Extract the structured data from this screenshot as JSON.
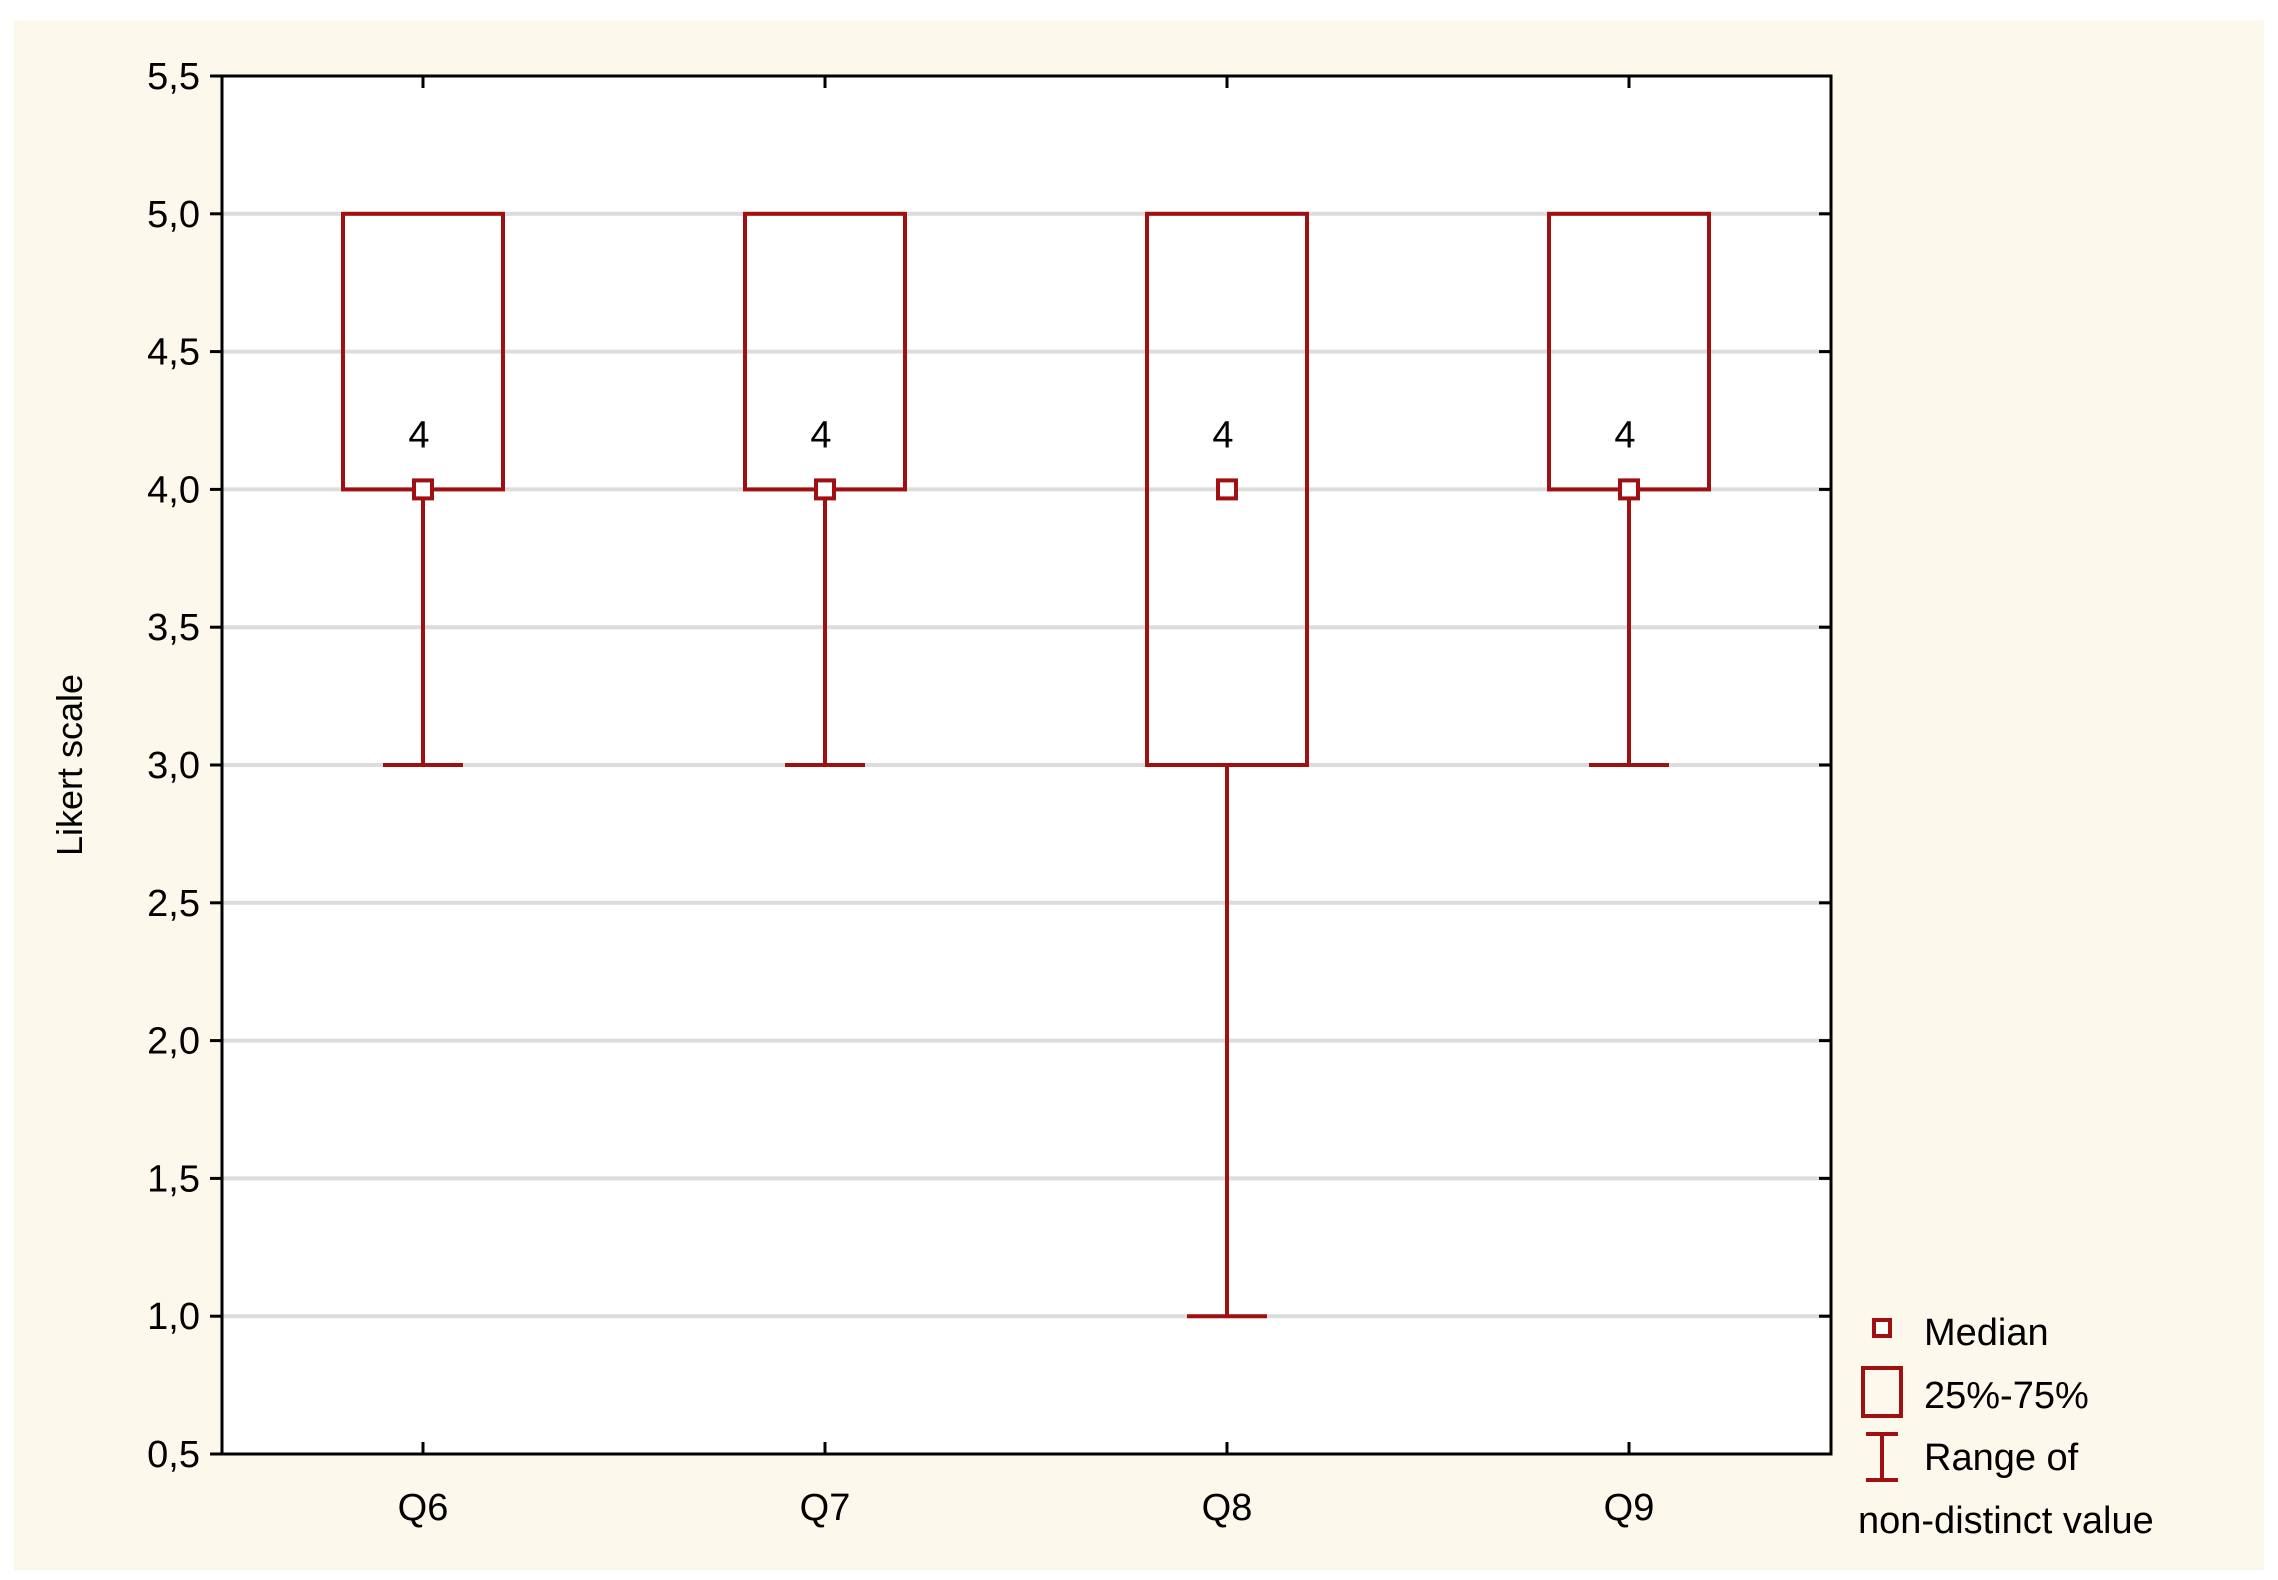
{
  "chart_data": {
    "type": "box",
    "categories": [
      "Q6",
      "Q7",
      "Q8",
      "Q9"
    ],
    "boxes": [
      {
        "category": "Q6",
        "median": 4,
        "q1": 4,
        "q3": 5,
        "min": 3,
        "max": 5,
        "label": "4"
      },
      {
        "category": "Q7",
        "median": 4,
        "q1": 4,
        "q3": 5,
        "min": 3,
        "max": 5,
        "label": "4"
      },
      {
        "category": "Q8",
        "median": 4,
        "q1": 3,
        "q3": 5,
        "min": 1,
        "max": 5,
        "label": "4"
      },
      {
        "category": "Q9",
        "median": 4,
        "q1": 4,
        "q3": 5,
        "min": 3,
        "max": 5,
        "label": "4"
      }
    ],
    "ylabel": "Likert scale",
    "xlabel": "",
    "ylim": [
      0.5,
      5.5
    ],
    "yticks": [
      "0,5",
      "1,0",
      "1,5",
      "2,0",
      "2,5",
      "3,0",
      "3,5",
      "4,0",
      "4,5",
      "5,0",
      "5,5"
    ],
    "grid": true,
    "legend": {
      "position": "bottom-right",
      "entries": [
        "Median",
        "25%-75%",
        "Range of",
        "non-distinct value"
      ]
    },
    "colors": {
      "box": "#a01010",
      "grid": "#dcdcdc",
      "background": "#fdf8ec"
    }
  }
}
